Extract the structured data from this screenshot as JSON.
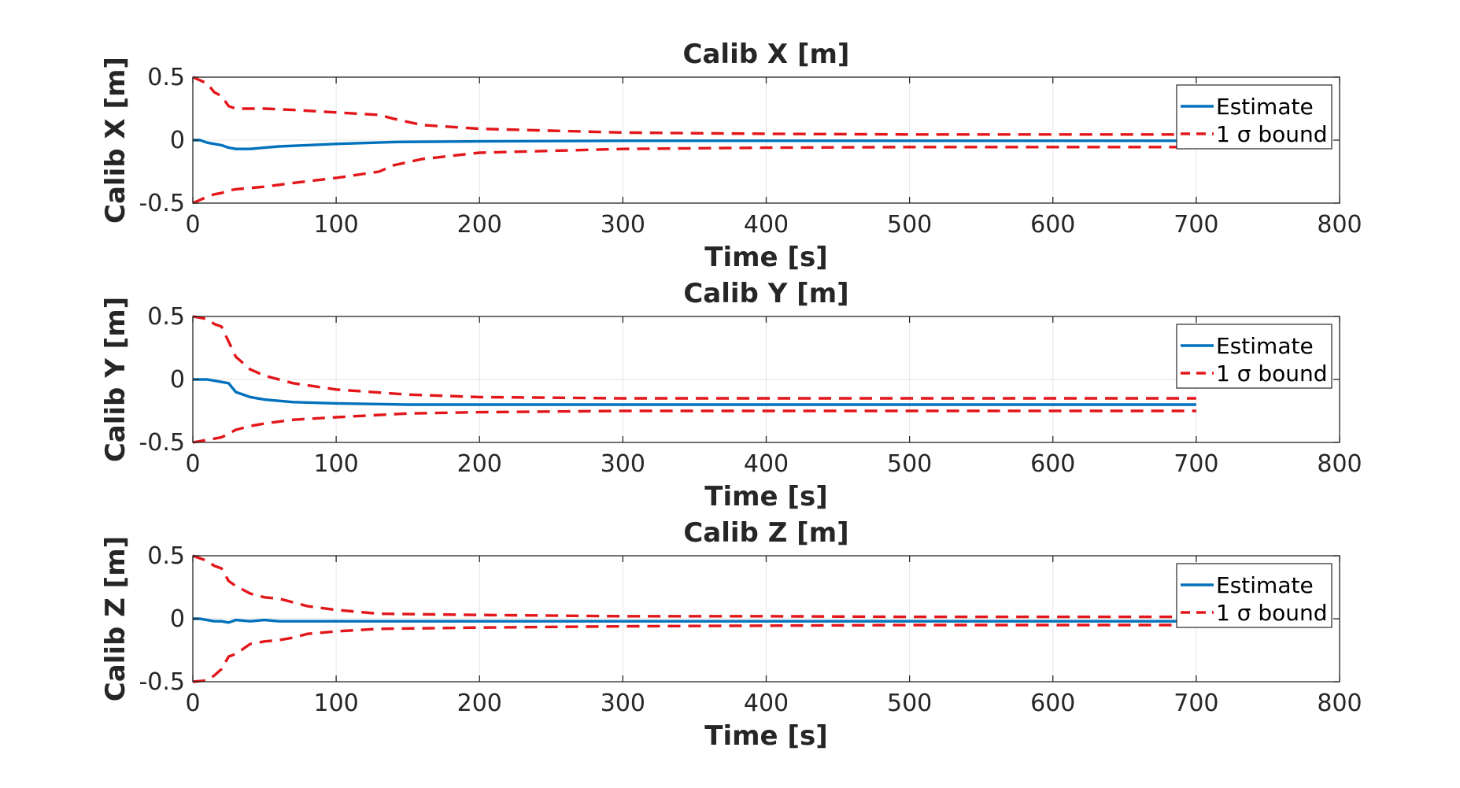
{
  "colors": {
    "estimate": "#0072BD",
    "bound": "#E3161A",
    "grid": "#E6E6E6",
    "axis": "#262626"
  },
  "chart_data": [
    {
      "type": "line",
      "title": "Calib X [m]",
      "xlabel": "Time [s]",
      "ylabel": "Calib X [m]",
      "xlim": [
        0,
        800
      ],
      "ylim": [
        -0.5,
        0.5
      ],
      "xticks": [
        0,
        100,
        200,
        300,
        400,
        500,
        600,
        700,
        800
      ],
      "yticks": [
        -0.5,
        0,
        0.5
      ],
      "xtick_labels": [
        "0",
        "100",
        "200",
        "300",
        "400",
        "500",
        "600",
        "700",
        "800"
      ],
      "ytick_labels": [
        "-0.5",
        "0",
        "0.5"
      ],
      "grid": true,
      "legend": {
        "location": "top-right",
        "entries": [
          {
            "label": "Estimate",
            "style": "solid"
          },
          {
            "label": "1 σ bound",
            "style": "dashed"
          }
        ]
      },
      "series": [
        {
          "name": "Estimate",
          "style": "solid",
          "x": [
            0,
            5,
            10,
            15,
            20,
            25,
            30,
            40,
            50,
            60,
            80,
            100,
            140,
            200,
            300,
            400,
            500,
            600,
            700
          ],
          "y": [
            0,
            0,
            -0.02,
            -0.03,
            -0.04,
            -0.06,
            -0.07,
            -0.07,
            -0.06,
            -0.05,
            -0.04,
            -0.03,
            -0.015,
            -0.01,
            -0.005,
            -0.005,
            -0.005,
            -0.005,
            -0.005
          ]
        },
        {
          "name": "1 σ bound",
          "style": "dashed",
          "x": [
            0,
            10,
            15,
            20,
            25,
            30,
            50,
            70,
            100,
            130,
            140,
            160,
            200,
            300,
            400,
            500,
            600,
            700
          ],
          "y": [
            0.5,
            0.45,
            0.38,
            0.35,
            0.27,
            0.25,
            0.25,
            0.24,
            0.22,
            0.2,
            0.17,
            0.12,
            0.09,
            0.06,
            0.05,
            0.045,
            0.045,
            0.045
          ]
        },
        {
          "name": "",
          "style": "dashed",
          "x": [
            0,
            10,
            15,
            20,
            25,
            30,
            50,
            70,
            100,
            130,
            140,
            160,
            200,
            300,
            400,
            500,
            600,
            700
          ],
          "y": [
            -0.5,
            -0.45,
            -0.43,
            -0.42,
            -0.4,
            -0.39,
            -0.37,
            -0.34,
            -0.3,
            -0.25,
            -0.2,
            -0.15,
            -0.1,
            -0.07,
            -0.06,
            -0.055,
            -0.055,
            -0.055
          ]
        }
      ]
    },
    {
      "type": "line",
      "title": "Calib Y [m]",
      "xlabel": "Time [s]",
      "ylabel": "Calib Y [m]",
      "xlim": [
        0,
        800
      ],
      "ylim": [
        -0.5,
        0.5
      ],
      "xticks": [
        0,
        100,
        200,
        300,
        400,
        500,
        600,
        700,
        800
      ],
      "yticks": [
        -0.5,
        0,
        0.5
      ],
      "xtick_labels": [
        "0",
        "100",
        "200",
        "300",
        "400",
        "500",
        "600",
        "700",
        "800"
      ],
      "ytick_labels": [
        "-0.5",
        "0",
        "0.5"
      ],
      "grid": true,
      "legend": {
        "location": "top-right",
        "entries": [
          {
            "label": "Estimate",
            "style": "solid"
          },
          {
            "label": "1 σ bound",
            "style": "dashed"
          }
        ]
      },
      "series": [
        {
          "name": "Estimate",
          "style": "solid",
          "x": [
            0,
            10,
            15,
            20,
            25,
            30,
            40,
            50,
            70,
            100,
            150,
            200,
            300,
            400,
            500,
            600,
            700
          ],
          "y": [
            0,
            0,
            -0.01,
            -0.02,
            -0.03,
            -0.1,
            -0.14,
            -0.16,
            -0.18,
            -0.19,
            -0.2,
            -0.2,
            -0.2,
            -0.2,
            -0.2,
            -0.2,
            -0.2
          ]
        },
        {
          "name": "1 σ bound",
          "style": "dashed",
          "x": [
            0,
            10,
            15,
            20,
            25,
            30,
            40,
            50,
            70,
            100,
            150,
            200,
            300,
            400,
            500,
            600,
            700
          ],
          "y": [
            0.5,
            0.48,
            0.44,
            0.42,
            0.3,
            0.18,
            0.08,
            0.03,
            -0.03,
            -0.08,
            -0.12,
            -0.14,
            -0.15,
            -0.15,
            -0.15,
            -0.15,
            -0.15
          ]
        },
        {
          "name": "",
          "style": "dashed",
          "x": [
            0,
            10,
            15,
            20,
            25,
            30,
            40,
            50,
            70,
            100,
            150,
            200,
            300,
            400,
            500,
            600,
            700
          ],
          "y": [
            -0.5,
            -0.48,
            -0.47,
            -0.46,
            -0.43,
            -0.4,
            -0.37,
            -0.35,
            -0.32,
            -0.3,
            -0.27,
            -0.26,
            -0.25,
            -0.25,
            -0.25,
            -0.25,
            -0.25
          ]
        }
      ]
    },
    {
      "type": "line",
      "title": "Calib Z [m]",
      "xlabel": "Time [s]",
      "ylabel": "Calib Z [m]",
      "xlim": [
        0,
        800
      ],
      "ylim": [
        -0.5,
        0.5
      ],
      "xticks": [
        0,
        100,
        200,
        300,
        400,
        500,
        600,
        700,
        800
      ],
      "yticks": [
        -0.5,
        0,
        0.5
      ],
      "xtick_labels": [
        "0",
        "100",
        "200",
        "300",
        "400",
        "500",
        "600",
        "700",
        "800"
      ],
      "ytick_labels": [
        "-0.5",
        "0",
        "0.5"
      ],
      "grid": true,
      "legend": {
        "location": "top-right",
        "entries": [
          {
            "label": "Estimate",
            "style": "solid"
          },
          {
            "label": "1 σ bound",
            "style": "dashed"
          }
        ]
      },
      "series": [
        {
          "name": "Estimate",
          "style": "solid",
          "x": [
            0,
            5,
            10,
            15,
            20,
            25,
            30,
            40,
            50,
            60,
            80,
            100,
            200,
            300,
            400,
            500,
            600,
            700
          ],
          "y": [
            0,
            0,
            -0.01,
            -0.02,
            -0.02,
            -0.03,
            -0.01,
            -0.02,
            -0.01,
            -0.02,
            -0.02,
            -0.02,
            -0.02,
            -0.02,
            -0.02,
            -0.02,
            -0.02,
            -0.02
          ]
        },
        {
          "name": "1 σ bound",
          "style": "dashed",
          "x": [
            0,
            10,
            15,
            20,
            25,
            30,
            40,
            50,
            60,
            70,
            80,
            100,
            130,
            200,
            300,
            400,
            500,
            600,
            700
          ],
          "y": [
            0.5,
            0.46,
            0.42,
            0.4,
            0.3,
            0.26,
            0.2,
            0.17,
            0.16,
            0.13,
            0.1,
            0.07,
            0.04,
            0.03,
            0.02,
            0.02,
            0.015,
            0.015,
            0.015
          ]
        },
        {
          "name": "",
          "style": "dashed",
          "x": [
            0,
            10,
            15,
            20,
            25,
            30,
            40,
            50,
            60,
            70,
            80,
            100,
            130,
            200,
            300,
            400,
            500,
            600,
            700
          ],
          "y": [
            -0.5,
            -0.49,
            -0.45,
            -0.4,
            -0.3,
            -0.28,
            -0.2,
            -0.18,
            -0.17,
            -0.15,
            -0.12,
            -0.1,
            -0.08,
            -0.07,
            -0.06,
            -0.055,
            -0.05,
            -0.05,
            -0.05
          ]
        }
      ]
    }
  ]
}
